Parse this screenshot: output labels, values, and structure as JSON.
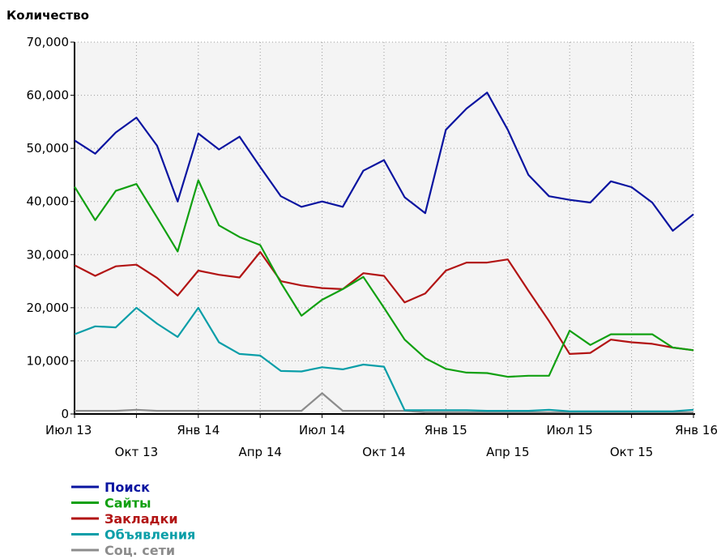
{
  "chart_data": {
    "type": "line",
    "title": "Количество",
    "xlabel": "",
    "ylabel": "",
    "ylim": [
      0,
      70000
    ],
    "yticks": [
      "0",
      "10,000",
      "20,000",
      "30,000",
      "40,000",
      "50,000",
      "60,000",
      "70,000"
    ],
    "x_tick_labels": [
      {
        "label": "Июл 13",
        "index": 0,
        "row": 0
      },
      {
        "label": "Окт 13",
        "index": 3,
        "row": 1
      },
      {
        "label": "Янв 14",
        "index": 6,
        "row": 0
      },
      {
        "label": "Апр 14",
        "index": 9,
        "row": 1
      },
      {
        "label": "Июл 14",
        "index": 12,
        "row": 0
      },
      {
        "label": "Окт 14",
        "index": 15,
        "row": 1
      },
      {
        "label": "Янв 15",
        "index": 18,
        "row": 0
      },
      {
        "label": "Апр 15",
        "index": 21,
        "row": 1
      },
      {
        "label": "Июл 15",
        "index": 24,
        "row": 0
      },
      {
        "label": "Окт 15",
        "index": 27,
        "row": 1
      },
      {
        "label": "Янв 16",
        "index": 30,
        "row": 0
      }
    ],
    "grid": true,
    "legend_position": "bottom-left",
    "series": [
      {
        "name": "Поиск",
        "color": "#0a14a0",
        "values": [
          51500,
          49000,
          53000,
          55800,
          50500,
          40000,
          52800,
          49800,
          52200,
          46500,
          41000,
          39000,
          40000,
          39000,
          45800,
          47800,
          40800,
          37800,
          53500,
          57500,
          60500,
          53500,
          45000,
          41000,
          40300,
          39800,
          43800,
          42700,
          39800,
          34500,
          37600
        ]
      },
      {
        "name": "Сайты",
        "color": "#11a011",
        "values": [
          42800,
          36500,
          42000,
          43300,
          37000,
          30600,
          44000,
          35500,
          33300,
          31800,
          24700,
          18500,
          21500,
          23500,
          25800,
          20000,
          14000,
          10500,
          8500,
          7800,
          7700,
          7000,
          7200,
          7200,
          15700,
          13000,
          15000,
          15000,
          15000,
          12500,
          12000
        ]
      },
      {
        "name": "Закладки",
        "color": "#b21414",
        "values": [
          28000,
          26000,
          27800,
          28100,
          25600,
          22300,
          27000,
          26200,
          25700,
          30500,
          25000,
          24200,
          23700,
          23500,
          26500,
          26000,
          21000,
          22700,
          27000,
          28500,
          28500,
          29100,
          23200,
          17500,
          11300,
          11500,
          14000,
          13500,
          13200,
          12500,
          12000
        ]
      },
      {
        "name": "Объявления",
        "color": "#0a9ea8",
        "values": [
          15000,
          16500,
          16300,
          20000,
          17000,
          14500,
          20000,
          13500,
          11300,
          11000,
          8100,
          8000,
          8800,
          8400,
          9300,
          8900,
          700,
          700,
          700,
          700,
          600,
          600,
          600,
          800,
          500,
          500,
          500,
          500,
          500,
          500,
          800
        ]
      },
      {
        "name": "Соц. сети",
        "color": "#8c8c8c",
        "values": [
          600,
          600,
          600,
          800,
          600,
          600,
          600,
          600,
          600,
          600,
          600,
          600,
          3900,
          600,
          600,
          600,
          600,
          300,
          300,
          300,
          300,
          300,
          300,
          300,
          300,
          300,
          300,
          300,
          300,
          300,
          300
        ]
      }
    ]
  }
}
